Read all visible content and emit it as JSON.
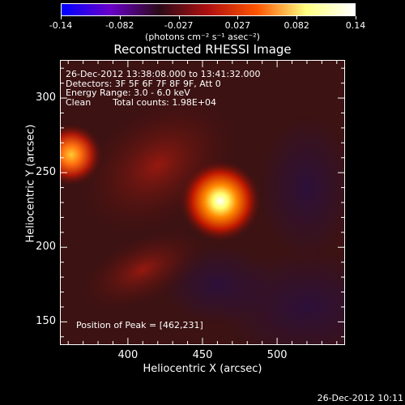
{
  "chart_data": {
    "type": "heatmap",
    "title": "Reconstructed RHESSI Image",
    "xlabel": "Heliocentric X (arcsec)",
    "ylabel": "Heliocentric Y (arcsec)",
    "xlim": [
      355,
      545
    ],
    "ylim": [
      135,
      325
    ],
    "x_ticks": [
      400,
      450,
      500
    ],
    "y_ticks": [
      150,
      200,
      250,
      300
    ],
    "colorbar": {
      "range": [
        -0.14,
        0.14
      ],
      "ticks": [
        "-0.14",
        "-0.082",
        "-0.027",
        "0.027",
        "0.082",
        "0.14"
      ],
      "unit_label": "(photons cm⁻² s⁻¹ asec⁻²)",
      "colors": [
        "#0000ff",
        "#6a00c8",
        "#2a0a18",
        "#b01010",
        "#ff5500",
        "#ffff80",
        "#ffffff"
      ]
    },
    "sources": [
      {
        "x": 462,
        "y": 231,
        "intensity": 0.14
      },
      {
        "x": 362,
        "y": 262,
        "intensity": 0.085
      }
    ],
    "annotations": {
      "time_range": "26-Dec-2012 13:38:08.000 to 13:41:32.000",
      "detectors": "Detectors: 3F 5F 6F 7F 8F 9F, Att 0",
      "energy_range": "Energy Range: 3.0 - 6.0 keV",
      "method": "Clean",
      "total_counts": "Total counts: 1.98E+04",
      "peak_position": "Position of Peak = [462,231]"
    }
  },
  "timestamp": "26-Dec-2012 10:11"
}
